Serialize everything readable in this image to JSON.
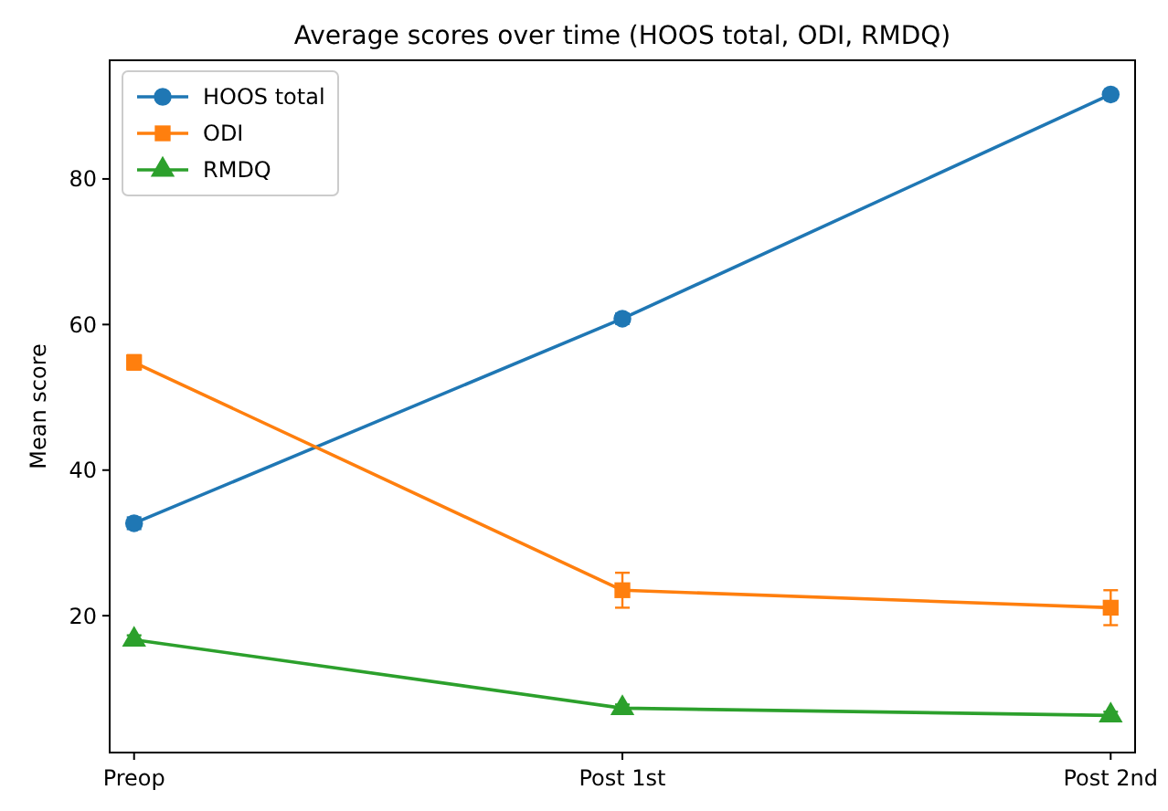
{
  "chart_data": {
    "type": "line",
    "title": "Average scores over time (HOOS total, ODI, RMDQ)",
    "ylabel": "Mean score",
    "categories": [
      "Preop",
      "Post 1st",
      "Post 2nd"
    ],
    "ylim": [
      1.2,
      96.3
    ],
    "yticks": [
      20,
      40,
      60,
      80
    ],
    "grid": false,
    "legend": "top left",
    "series": [
      {
        "name": "HOOS total",
        "color": "#1f77b4",
        "marker": "circle",
        "values": [
          32.7,
          60.8,
          91.6
        ],
        "errors": [
          0.8,
          0.7,
          0.5
        ]
      },
      {
        "name": "ODI",
        "color": "#ff7f0e",
        "marker": "square",
        "values": [
          54.8,
          23.5,
          21.1
        ],
        "errors": [
          1,
          2.4,
          2.4
        ]
      },
      {
        "name": "RMDQ",
        "color": "#2ca02c",
        "marker": "triangle",
        "values": [
          16.7,
          7.3,
          6.3
        ],
        "errors": [
          0.6,
          0.5,
          0.5
        ]
      }
    ]
  }
}
